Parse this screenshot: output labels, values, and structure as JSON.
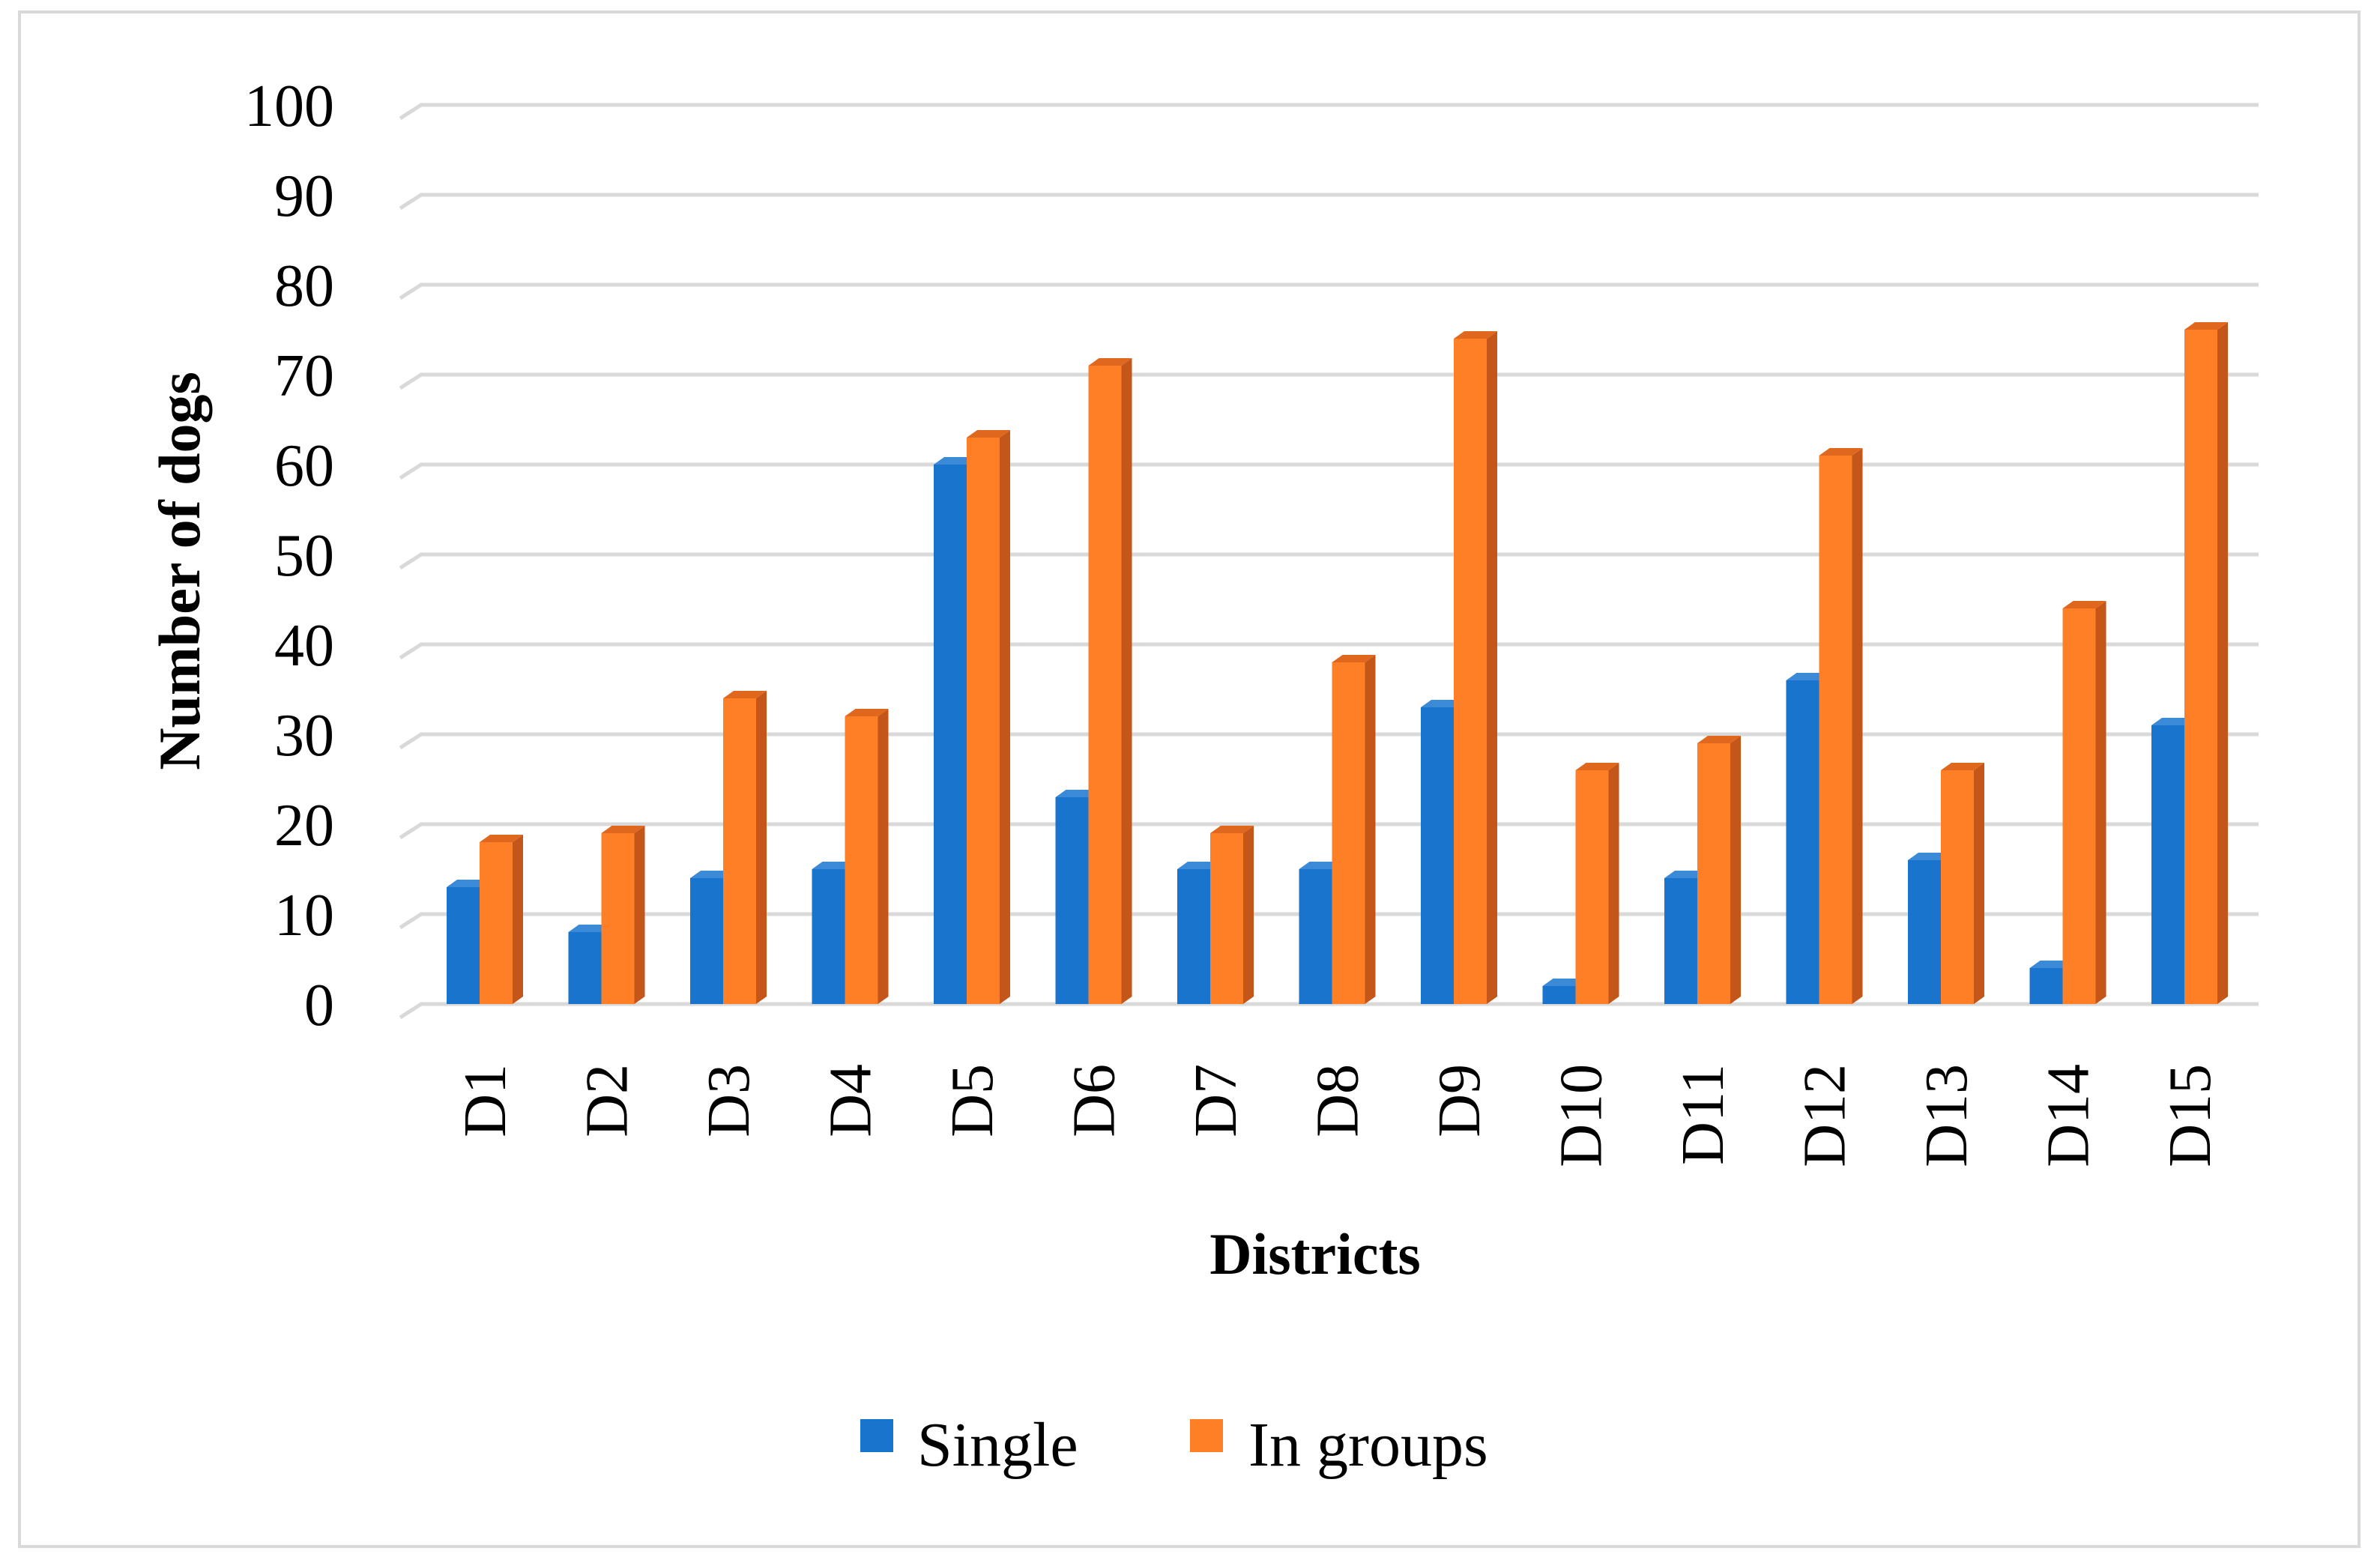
{
  "chart_data": {
    "type": "bar",
    "title": "",
    "xlabel": "Districts",
    "ylabel": "Number of dogs",
    "ylim": [
      0,
      100
    ],
    "yticks": [
      0,
      10,
      20,
      30,
      40,
      50,
      60,
      70,
      80,
      90,
      100
    ],
    "grid": true,
    "legend_position": "bottom",
    "categories": [
      "D1",
      "D2",
      "D3",
      "D4",
      "D5",
      "D6",
      "D7",
      "D8",
      "D9",
      "D10",
      "D11",
      "D12",
      "D13",
      "D14",
      "D15"
    ],
    "series": [
      {
        "name": "Single",
        "color": "#1874CD",
        "side_color": "#0F4E8C",
        "top_color": "#3A8AD8",
        "values": [
          13,
          8,
          14,
          15,
          60,
          23,
          15,
          15,
          33,
          2,
          14,
          36,
          16,
          4,
          31
        ]
      },
      {
        "name": "In groups",
        "color": "#FF7F27",
        "side_color": "#C4561A",
        "top_color": "#E0681E",
        "values": [
          18,
          19,
          34,
          32,
          63,
          71,
          19,
          38,
          74,
          26,
          29,
          61,
          26,
          44,
          75
        ]
      }
    ]
  }
}
